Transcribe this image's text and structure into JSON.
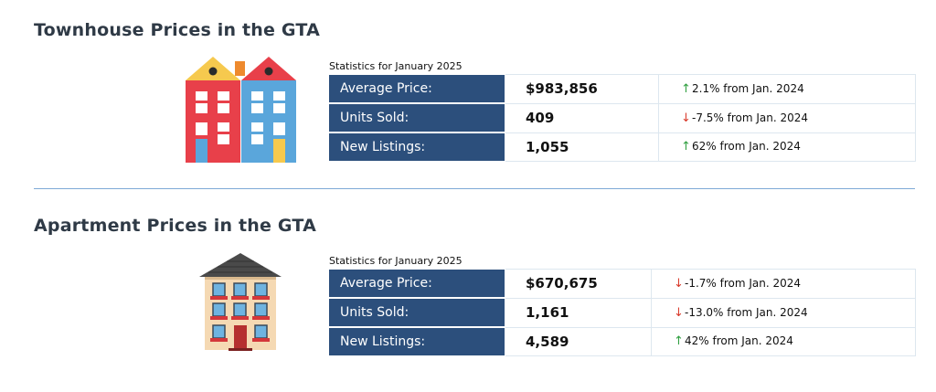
{
  "townhouse": {
    "title": "Townhouse Prices in the GTA",
    "caption": "Statistics for January 2025",
    "rows": [
      {
        "label": "Average Price:",
        "value": "$983,856",
        "direction": "up",
        "change": "2.1% from Jan. 2024"
      },
      {
        "label": "Units Sold:",
        "value": "409",
        "direction": "down",
        "change": "-7.5% from Jan. 2024"
      },
      {
        "label": "New Listings:",
        "value": "1,055",
        "direction": "up",
        "change": "62% from Jan. 2024"
      }
    ]
  },
  "apartment": {
    "title": "Apartment Prices in the GTA",
    "caption": "Statistics for January 2025",
    "rows": [
      {
        "label": "Average Price:",
        "value": "$670,675",
        "direction": "down",
        "change": "-1.7% from Jan. 2024"
      },
      {
        "label": "Units Sold:",
        "value": "1,161",
        "direction": "down",
        "change": "-13.0% from Jan. 2024"
      },
      {
        "label": "New Listings:",
        "value": "4,589",
        "direction": "up",
        "change": "42% from Jan. 2024"
      }
    ]
  },
  "icons": {
    "townhouse": "townhouse-illustration",
    "apartment": "apartment-building-illustration",
    "up": "arrow-up-icon",
    "down": "arrow-down-icon"
  },
  "colors": {
    "label_bg": "#2c4f7c",
    "up": "#2e9e3e",
    "down": "#d93a2b",
    "divider": "#7ea9d6"
  }
}
